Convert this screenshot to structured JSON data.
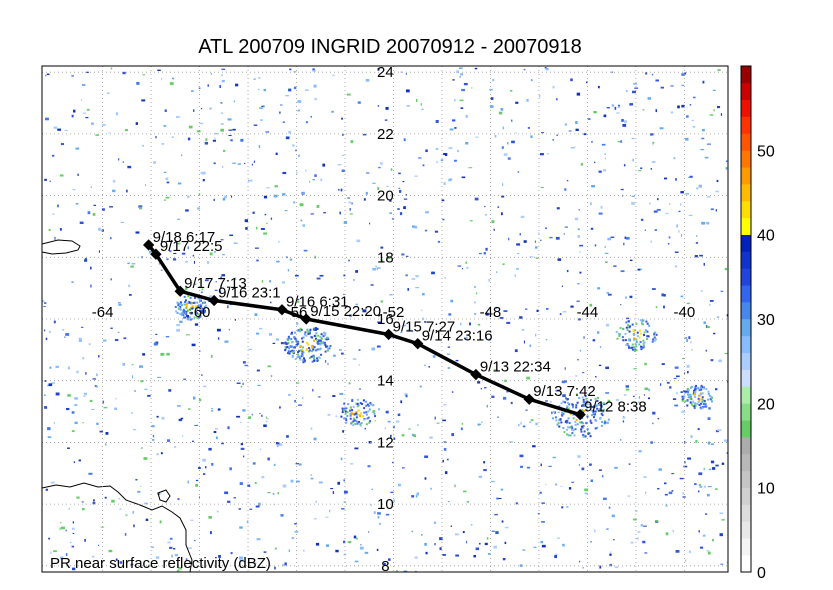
{
  "title": "ATL 200709 INGRID 20070912 - 20070918",
  "footer_label": "PR near surface reflectivity (dBZ)",
  "latitude_labels": [
    "24",
    "22",
    "20",
    "18",
    "16",
    "14",
    "12",
    "10",
    "8"
  ],
  "longitude_labels": [
    "-64",
    "-60",
    "-56",
    "-52",
    "-48",
    "-44",
    "-40"
  ],
  "track_points": [
    {
      "label": "9/18 6:17",
      "lon": -62.1,
      "lat": 18.4
    },
    {
      "label": "9/17 22:5",
      "lon": -61.8,
      "lat": 18.1
    },
    {
      "label": "9/17 7:13",
      "lon": -60.8,
      "lat": 16.9
    },
    {
      "label": "9/16 23:1",
      "lon": -59.4,
      "lat": 16.6
    },
    {
      "label": "9/16 6:31",
      "lon": -56.6,
      "lat": 16.3
    },
    {
      "label": "9/15 22:20",
      "lon": -55.6,
      "lat": 16.0
    },
    {
      "label": "9/15 7:27",
      "lon": -52.2,
      "lat": 15.5
    },
    {
      "label": "9/14 23:16",
      "lon": -51.0,
      "lat": 15.2
    },
    {
      "label": "9/13 22:34",
      "lon": -48.6,
      "lat": 14.2
    },
    {
      "label": "9/13 7:42",
      "lon": -46.4,
      "lat": 13.4
    },
    {
      "label": "9/12 8:38",
      "lon": -44.3,
      "lat": 12.9
    }
  ],
  "colorbar": {
    "min": 0,
    "max": 60,
    "tick_labels": [
      "0",
      "10",
      "20",
      "30",
      "40",
      "50"
    ],
    "colors": [
      "#ffffff",
      "#f4f4f4",
      "#e8e8e8",
      "#dcdcdc",
      "#d0d0d0",
      "#c4c4c4",
      "#b8b8b8",
      "#acacac",
      "#66cc66",
      "#88dd88",
      "#aaeeaa",
      "#ccddff",
      "#aaccff",
      "#88bbff",
      "#66aaee",
      "#4488ee",
      "#3366ee",
      "#2244dd",
      "#1133cc",
      "#0022bb",
      "#ffff00",
      "#ffdd00",
      "#ffbb00",
      "#ff9900",
      "#ff7700",
      "#ff5500",
      "#ff3300",
      "#ee1100",
      "#cc0000",
      "#990000"
    ]
  }
}
